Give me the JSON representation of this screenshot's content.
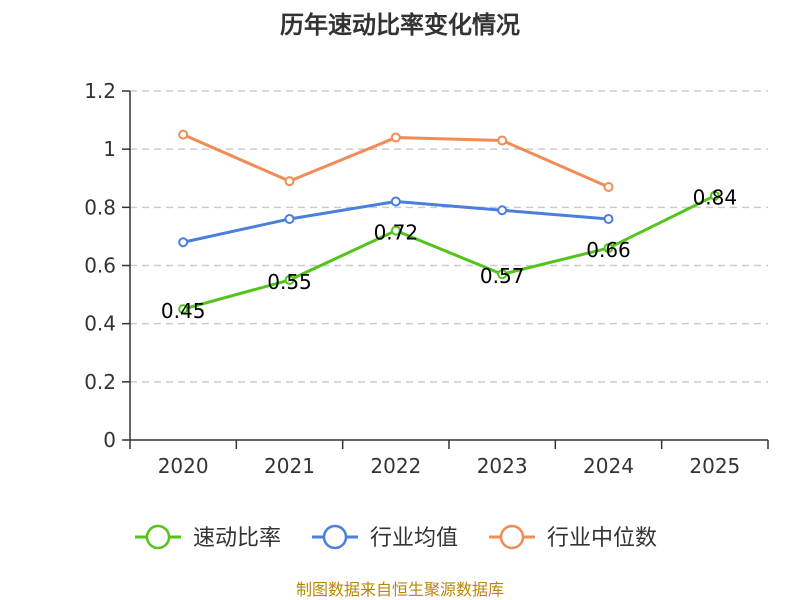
{
  "chart_data": {
    "type": "line",
    "title": "历年速动比率变化情况",
    "categories": [
      "2020",
      "2021",
      "2022",
      "2023",
      "2024",
      "2025"
    ],
    "ylim": [
      0,
      1.2
    ],
    "yticks": [
      "0",
      "0.2",
      "0.4",
      "0.6",
      "0.8",
      "1",
      "1.2"
    ],
    "grid": true,
    "legend_position": "bottom",
    "series": [
      {
        "name": "速动比率",
        "color": "#52c41a",
        "values": [
          0.45,
          0.55,
          0.72,
          0.57,
          0.66,
          0.84
        ],
        "labels": [
          "0.45",
          "0.55",
          "0.72",
          "0.57",
          "0.66",
          "0.84"
        ]
      },
      {
        "name": "行业均值",
        "color": "#4a7fdc",
        "values": [
          0.68,
          0.76,
          0.82,
          0.79,
          0.76,
          null
        ]
      },
      {
        "name": "行业中位数",
        "color": "#f08c55",
        "values": [
          1.05,
          0.89,
          1.04,
          1.03,
          0.87,
          null
        ]
      }
    ]
  },
  "source": "制图数据来自恒生聚源数据库"
}
